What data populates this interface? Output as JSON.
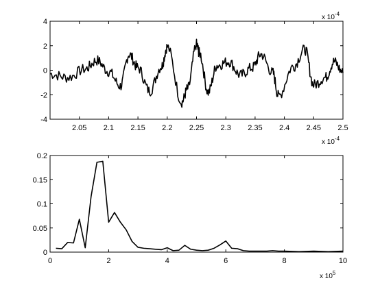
{
  "chart_data": [
    {
      "type": "line",
      "xlim": [
        0.0002,
        0.00025
      ],
      "ylim": [
        -4,
        4
      ],
      "xtick_labels": [
        "2.05",
        "2.1",
        "2.15",
        "2.2",
        "2.25",
        "2.3",
        "2.35",
        "2.4",
        "2.45",
        "2.5"
      ],
      "ytick_labels": [
        "-4",
        "-2",
        "0",
        "2",
        "4"
      ],
      "x_exponent_label": "x 10",
      "x_exponent": "-4",
      "y_exponent_label": "x 10",
      "y_exponent": "-4",
      "grid": false,
      "series": [
        {
          "color": "#000000",
          "x": [
            0.0002,
            0.000203,
            0.000206,
            0.000208,
            0.00021,
            0.000212,
            0.0002135,
            0.000215,
            0.000217,
            0.000219,
            0.00022,
            0.0002225,
            0.0002235,
            0.000225,
            0.0002255,
            0.000227,
            0.0002285,
            0.0002305,
            0.0002325,
            0.0002345,
            0.000236,
            0.000238,
            0.000239,
            0.0002415,
            0.0002435,
            0.000245,
            0.000247,
            0.0002485,
            0.00025
          ],
          "y": [
            -0.3,
            -0.6,
            0.1,
            0.8,
            -0.1,
            -1.3,
            1.3,
            0.2,
            -1.7,
            0.3,
            1.9,
            -2.6,
            -1.5,
            2.1,
            1.4,
            -1.8,
            0.4,
            0.7,
            -0.4,
            0.2,
            1.3,
            -0.2,
            -2.1,
            0.3,
            1.7,
            -1.2,
            -0.6,
            0.7,
            -0.2
          ]
        }
      ]
    },
    {
      "type": "line",
      "xlim": [
        0,
        1000000
      ],
      "ylim": [
        0,
        0.2
      ],
      "xtick_labels": [
        "0",
        "2",
        "4",
        "6",
        "8",
        "10"
      ],
      "ytick_labels": [
        "0",
        "0.05",
        "0.1",
        "0.15",
        "0.2"
      ],
      "x_exponent_label": "x 10",
      "x_exponent": "5",
      "grid": false,
      "series": [
        {
          "color": "#000000",
          "x": [
            20000,
            40000,
            60000,
            80000,
            100000,
            120000,
            140000,
            160000,
            180000,
            200000,
            220000,
            240000,
            260000,
            280000,
            300000,
            320000,
            340000,
            360000,
            380000,
            400000,
            420000,
            440000,
            460000,
            480000,
            500000,
            520000,
            540000,
            560000,
            580000,
            600000,
            620000,
            640000,
            660000,
            680000,
            700000,
            720000,
            740000,
            760000,
            780000,
            800000,
            850000,
            900000,
            950000,
            1000000
          ],
          "y": [
            0.008,
            0.007,
            0.02,
            0.019,
            0.068,
            0.009,
            0.115,
            0.186,
            0.188,
            0.062,
            0.082,
            0.062,
            0.046,
            0.022,
            0.01,
            0.008,
            0.007,
            0.006,
            0.005,
            0.009,
            0.003,
            0.004,
            0.014,
            0.006,
            0.004,
            0.003,
            0.004,
            0.008,
            0.015,
            0.023,
            0.008,
            0.007,
            0.003,
            0.002,
            0.002,
            0.002,
            0.002,
            0.003,
            0.002,
            0.002,
            0.001,
            0.002,
            0.001,
            0.002
          ]
        }
      ]
    }
  ]
}
